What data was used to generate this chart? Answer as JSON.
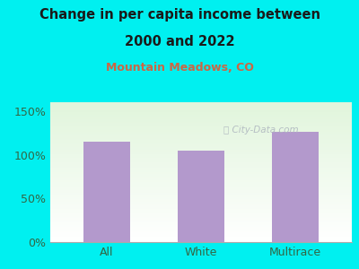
{
  "categories": [
    "All",
    "White",
    "Multirace"
  ],
  "values": [
    115,
    105,
    126
  ],
  "bar_color": "#b399cc",
  "title_line1": "Change in per capita income between",
  "title_line2": "2000 and 2022",
  "subtitle": "Mountain Meadows, CO",
  "subtitle_color": "#cc6644",
  "title_color": "#1a1a1a",
  "background_color": "#00f0f0",
  "tick_color": "#336644",
  "yticks": [
    0,
    50,
    100,
    150
  ],
  "ytick_labels": [
    "0%",
    "50%",
    "100%",
    "150%"
  ],
  "ylim": [
    0,
    160
  ],
  "watermark": "City-Data.com",
  "watermark_color": "#b0b8c0"
}
